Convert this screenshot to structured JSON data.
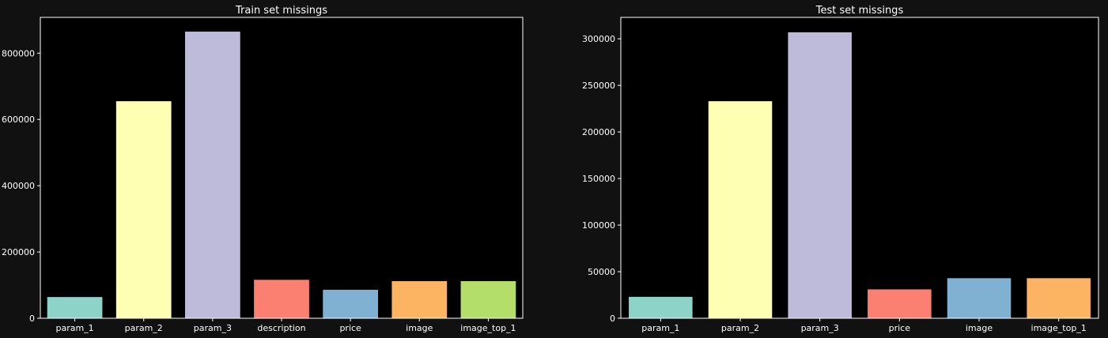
{
  "figure": {
    "background": "#111111",
    "axes_background": "#000000",
    "text_color": "#ffffff"
  },
  "chart_data": [
    {
      "type": "bar",
      "title": "Train set missings",
      "xlabel": "",
      "ylabel": "",
      "categories": [
        "param_1",
        "param_2",
        "param_3",
        "description",
        "price",
        "image",
        "image_top_1"
      ],
      "values": [
        64000,
        655000,
        865000,
        116000,
        86000,
        112000,
        112000
      ],
      "colors": [
        "#8dd3c7",
        "#ffffb3",
        "#bebada",
        "#fb8072",
        "#80b1d3",
        "#fdb462",
        "#b3de69"
      ],
      "ylim": [
        0,
        908000
      ],
      "yticks": [
        0,
        200000,
        400000,
        600000,
        800000
      ],
      "ytick_labels": [
        "0",
        "200000",
        "400000",
        "600000",
        "800000"
      ],
      "grid": false,
      "legend": "none"
    },
    {
      "type": "bar",
      "title": "Test set missings",
      "xlabel": "",
      "ylabel": "",
      "categories": [
        "param_1",
        "param_2",
        "param_3",
        "price",
        "image",
        "image_top_1"
      ],
      "values": [
        23000,
        233000,
        307000,
        31000,
        43000,
        43000
      ],
      "colors": [
        "#8dd3c7",
        "#ffffb3",
        "#bebada",
        "#fb8072",
        "#80b1d3",
        "#fdb462"
      ],
      "ylim": [
        0,
        323000
      ],
      "yticks": [
        0,
        50000,
        100000,
        150000,
        200000,
        250000,
        300000
      ],
      "ytick_labels": [
        "0",
        "50000",
        "100000",
        "150000",
        "200000",
        "250000",
        "300000"
      ],
      "grid": false,
      "legend": "none"
    }
  ]
}
